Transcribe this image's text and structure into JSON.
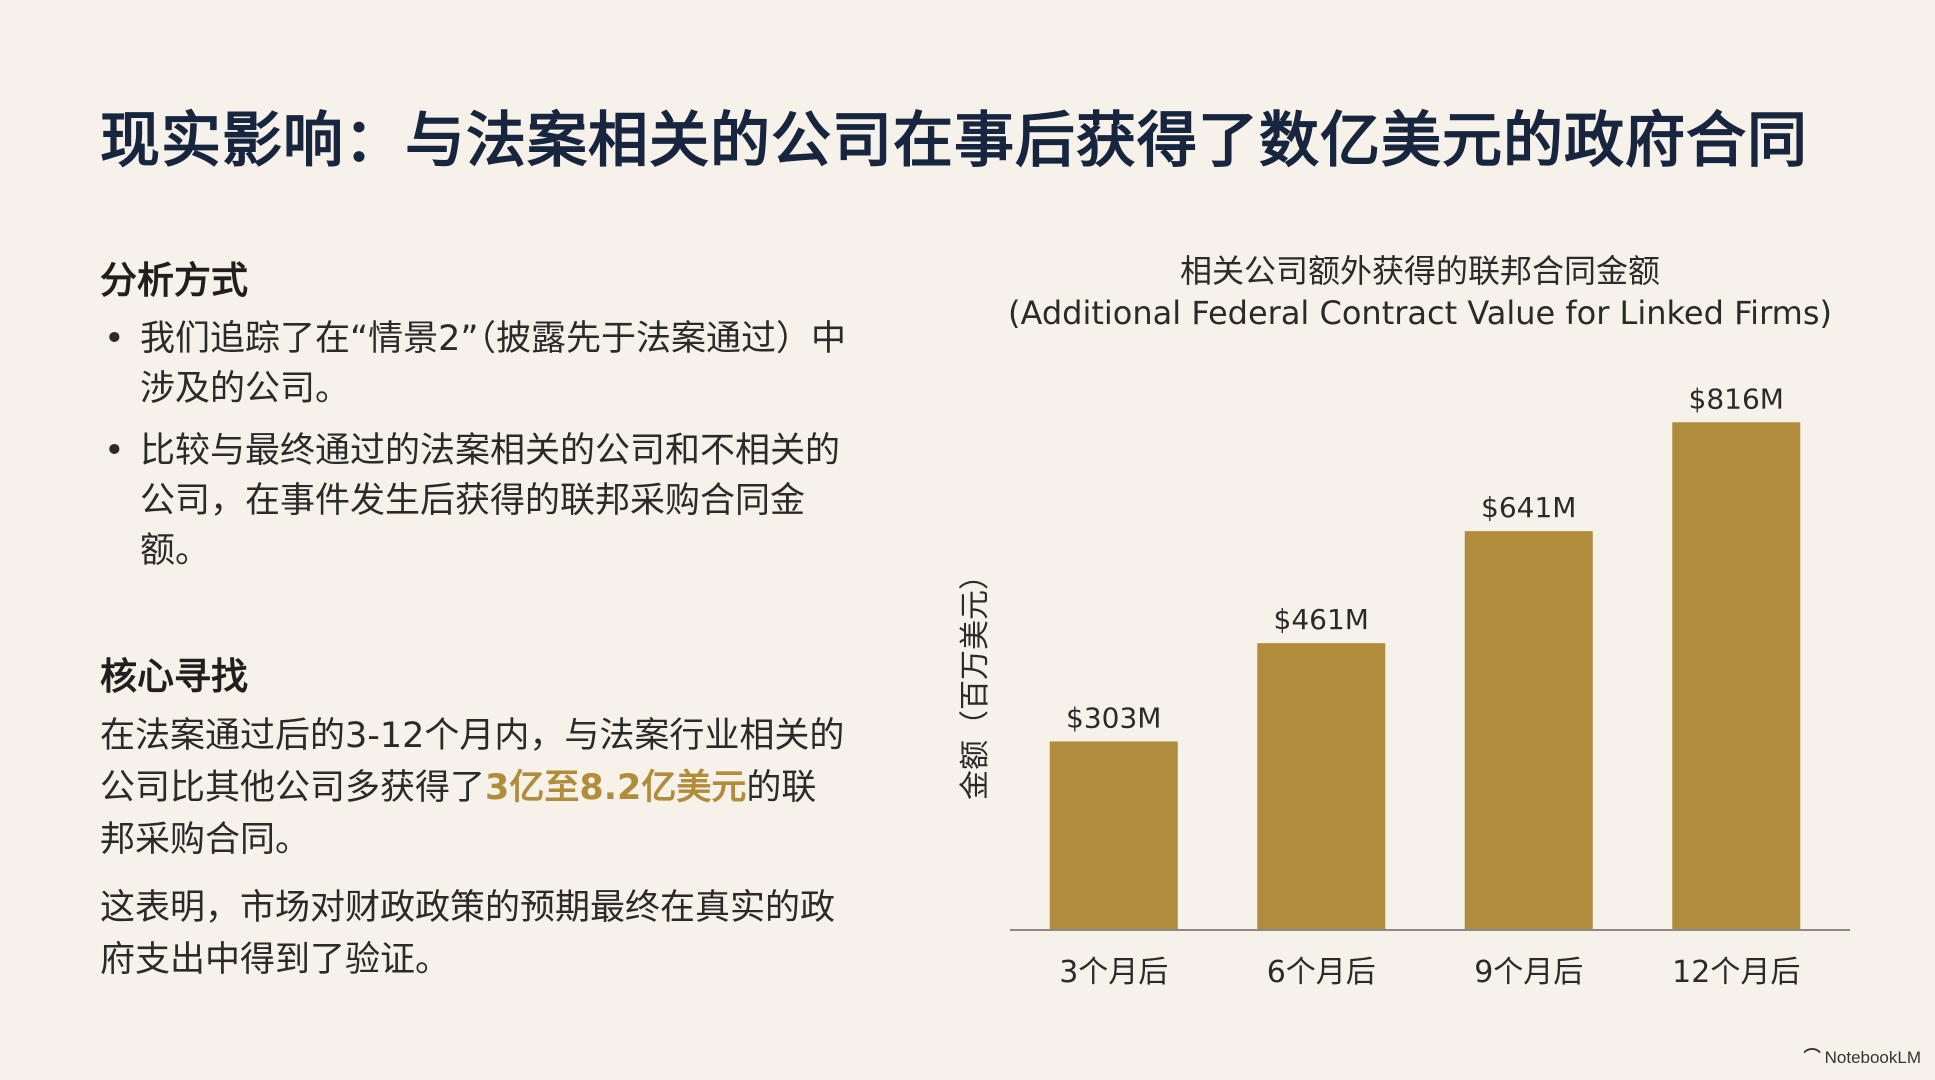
{
  "title": "现实影响：与法案相关的公司在事后获得了数亿美元的政府合同",
  "analysis": {
    "heading": "分析方式",
    "bullets": [
      "我们追踪了在“情景2”（披露先于法案通过）中涉及的公司。",
      "比较与最终通过的法案相关的公司和不相关的公司，在事件发生后获得的联邦采购合同金额。"
    ]
  },
  "finding": {
    "heading": "核心寻找",
    "para1_before": "在法案通过后的3-12个月内，与法案行业相关的公司比其他公司多获得了",
    "para1_highlight": "3亿至8.2亿美元",
    "para1_after": "的联邦采购合同。",
    "para2": "这表明，市场对财政政策的预期最终在真实的政府支出中得到了验证。"
  },
  "colors": {
    "bar": "#b08d3c",
    "highlight": "#b18c3a",
    "title": "#17253f"
  },
  "chart_data": {
    "type": "bar",
    "title_line1": "相关公司额外获得的联邦合同金额",
    "title_line2": "(Additional Federal Contract Value for Linked Firms)",
    "ylabel": "金额（百万美元）",
    "categories": [
      "3个月后",
      "6个月后",
      "9个月后",
      "12个月后"
    ],
    "values": [
      303,
      461,
      641,
      816
    ],
    "data_labels": [
      "$303M",
      "$461M",
      "$641M",
      "$816M"
    ],
    "ylim": [
      0,
      900
    ],
    "grid": false
  },
  "footer": {
    "brand": "NotebookLM",
    "logo_icon": "notebooklm-logo-icon"
  }
}
